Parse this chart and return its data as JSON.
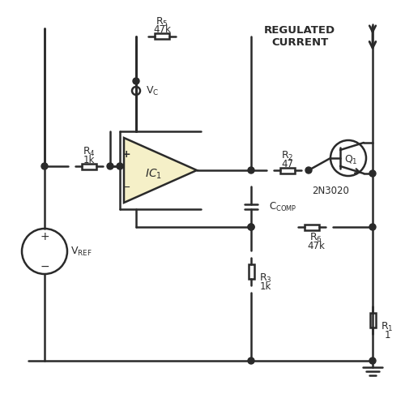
{
  "bg_color": "#ffffff",
  "line_color": "#2a2a2a",
  "line_width": 1.8,
  "opamp_fill": "#f5f0c8",
  "title": "",
  "components": {
    "R5": {
      "label": "R$_5$",
      "value": "47k"
    },
    "R4": {
      "label": "R$_4$",
      "value": "1k"
    },
    "R2": {
      "label": "R$_2$",
      "value": "47"
    },
    "R6": {
      "label": "R$_6$",
      "value": "47k"
    },
    "R3": {
      "label": "R$_3$",
      "value": "1k"
    },
    "R1": {
      "label": "R$_1$",
      "value": "1"
    },
    "Q1": {
      "label": "Q$_1$",
      "part": "2N3020"
    },
    "IC1": {
      "label": "IC$_1$"
    },
    "VREF": {
      "label": "V$_{\\mathrm{REF}}$"
    },
    "VC": {
      "label": "V$_\\mathrm{C}$"
    },
    "CCOMP": {
      "label": "C$_{\\mathrm{COMP}}$"
    }
  },
  "regulated_text": "REGULATED\nCURRENT"
}
